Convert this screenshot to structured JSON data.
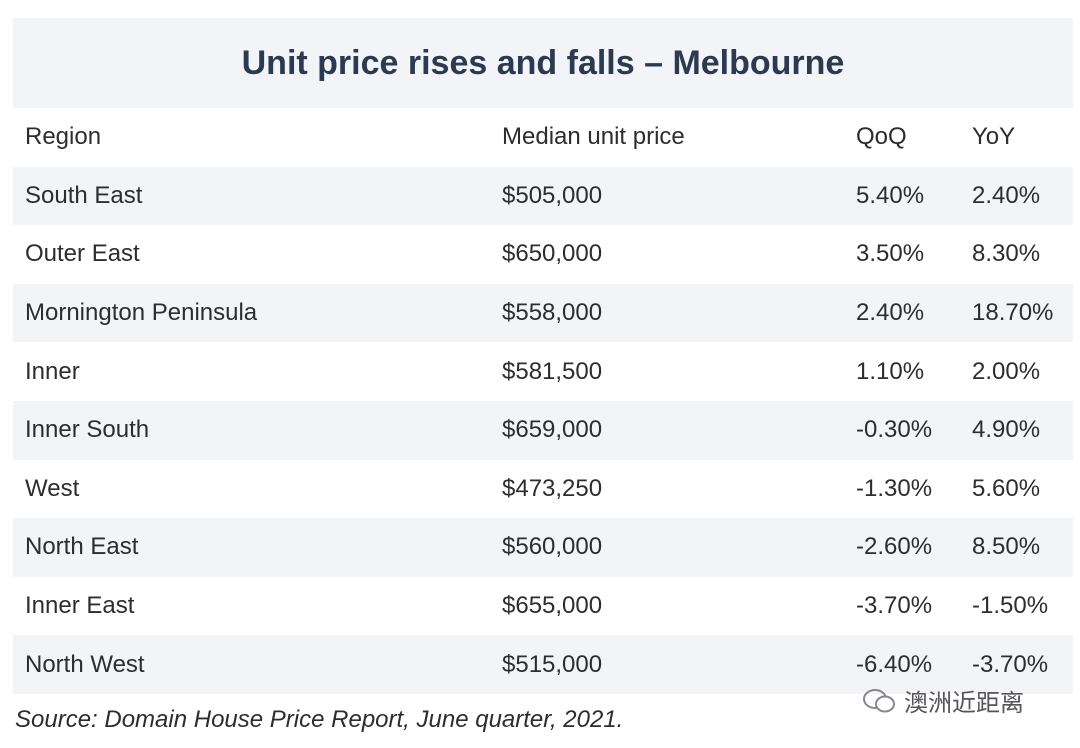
{
  "title": "Unit price rises and falls – Melbourne",
  "table": {
    "header": [
      "Region",
      "Median unit price",
      "QoQ",
      "YoY"
    ],
    "rows": [
      [
        "South East",
        "$505,000",
        "5.40%",
        "2.40%"
      ],
      [
        "Outer East",
        "$650,000",
        "3.50%",
        "8.30%"
      ],
      [
        "Mornington Peninsula",
        "$558,000",
        "2.40%",
        "18.70%"
      ],
      [
        "Inner",
        "$581,500",
        "1.10%",
        "2.00%"
      ],
      [
        "Inner South",
        "$659,000",
        "-0.30%",
        "4.90%"
      ],
      [
        "West",
        "$473,250",
        "-1.30%",
        "5.60%"
      ],
      [
        "North East",
        "$560,000",
        "-2.60%",
        "8.50%"
      ],
      [
        "Inner East",
        "$655,000",
        "-3.70%",
        "-1.50%"
      ],
      [
        "North West",
        "$515,000",
        "-6.40%",
        "-3.70%"
      ]
    ]
  },
  "source": "Source: Domain House Price Report, June quarter, 2021.",
  "watermark": "澳洲近距离"
}
